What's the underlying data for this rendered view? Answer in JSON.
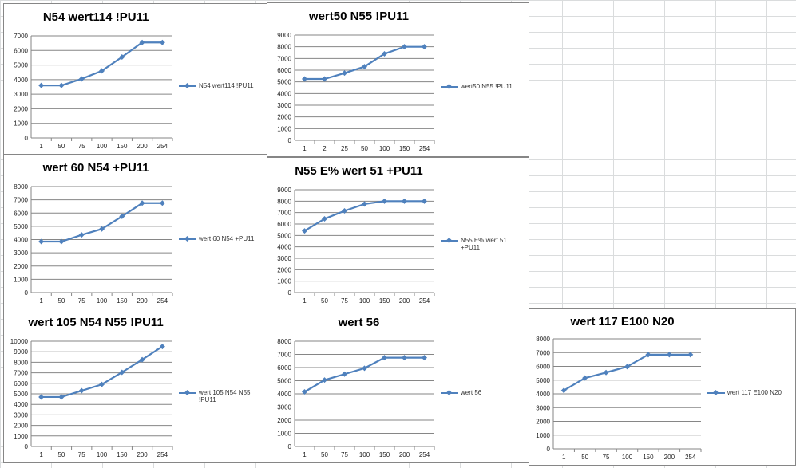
{
  "colors": {
    "series": "#4f81bd",
    "grid": "#868686"
  },
  "chart_data": [
    {
      "type": "line",
      "title": "N54  wert114 !PU11",
      "legend": "N54 wert114 !PU11",
      "categories": [
        "1",
        "50",
        "75",
        "100",
        "150",
        "200",
        "254"
      ],
      "values": [
        3600,
        3600,
        4050,
        4600,
        5550,
        6550,
        6550
      ],
      "ylim": [
        0,
        7000
      ],
      "ystep": 1000,
      "legend_position": "right"
    },
    {
      "type": "line",
      "title": "wert50 N55 !PU11",
      "legend": "wert50 N55 !PU11",
      "categories": [
        "1",
        "2",
        "25",
        "50",
        "100",
        "150",
        "254"
      ],
      "values": [
        5250,
        5250,
        5750,
        6300,
        7400,
        8000,
        8000
      ],
      "ylim": [
        0,
        9000
      ],
      "ystep": 1000,
      "legend_position": "right"
    },
    {
      "type": "line",
      "title": "wert 60 N54  +PU11",
      "legend": "wert 60 N54  +PU11",
      "categories": [
        "1",
        "50",
        "75",
        "100",
        "150",
        "200",
        "254"
      ],
      "values": [
        3850,
        3850,
        4350,
        4800,
        5750,
        6750,
        6750
      ],
      "ylim": [
        0,
        8000
      ],
      "ystep": 1000,
      "legend_position": "right"
    },
    {
      "type": "line",
      "title": "N55 E% wert 51  +PU11",
      "legend": "N55 E% wert 51 +PU11",
      "categories": [
        "1",
        "50",
        "75",
        "100",
        "150",
        "200",
        "254"
      ],
      "values": [
        5400,
        6450,
        7150,
        7750,
        8000,
        8000,
        8000
      ],
      "ylim": [
        0,
        9000
      ],
      "ystep": 1000,
      "legend_position": "right"
    },
    {
      "type": "line",
      "title": "wert 105 N54 N55 !PU11",
      "legend": "wert 105 N54 N55 !PU11",
      "categories": [
        "1",
        "50",
        "75",
        "100",
        "150",
        "200",
        "254"
      ],
      "values": [
        4700,
        4700,
        5300,
        5900,
        7050,
        8250,
        9500
      ],
      "ylim": [
        0,
        10000
      ],
      "ystep": 1000,
      "legend_position": "right"
    },
    {
      "type": "line",
      "title": "wert 56",
      "legend": "wert 56",
      "categories": [
        "1",
        "50",
        "75",
        "100",
        "150",
        "200",
        "254"
      ],
      "values": [
        4150,
        5050,
        5500,
        5950,
        6750,
        6750,
        6750
      ],
      "ylim": [
        0,
        8000
      ],
      "ystep": 1000,
      "legend_position": "right"
    },
    {
      "type": "line",
      "title": "wert 117 E100 N20",
      "legend": "wert 117 E100 N20",
      "categories": [
        "1",
        "50",
        "75",
        "100",
        "150",
        "200",
        "254"
      ],
      "values": [
        4250,
        5150,
        5550,
        5980,
        6850,
        6850,
        6850
      ],
      "ylim": [
        0,
        8000
      ],
      "ystep": 1000,
      "legend_position": "right"
    }
  ]
}
